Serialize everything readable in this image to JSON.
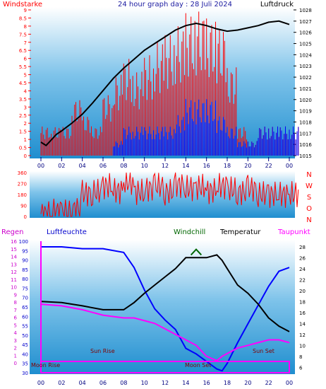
{
  "chart_data": [
    {
      "type": "line",
      "title": "24 hour graph day : 28 Juli 2024",
      "left_label": "Windstarke",
      "right_label": "Luftdruck",
      "x_ticks": [
        "00",
        "02",
        "04",
        "06",
        "08",
        "10",
        "12",
        "14",
        "16",
        "18",
        "20",
        "22",
        "00"
      ],
      "left_ticks": [
        "0",
        "0.5",
        "1",
        "1.5",
        "2",
        "2.5",
        "3",
        "3.5",
        "4",
        "4.5",
        "5",
        "5.5",
        "6",
        "6.5",
        "7",
        "7.5",
        "8",
        "8.5",
        "9"
      ],
      "right_ticks": [
        "1015",
        "1016",
        "1017",
        "1018",
        "1019",
        "1020",
        "1021",
        "1022",
        "1023",
        "1024",
        "1025",
        "1026",
        "1027",
        "1028"
      ],
      "ylim_left": [
        0,
        9
      ],
      "ylim_right": [
        1015,
        1028
      ],
      "series": [
        {
          "role": "pressure",
          "color": "#000000",
          "x": [
            0,
            0.5,
            1,
            1.5,
            2,
            3,
            4,
            5,
            6,
            7,
            8,
            9,
            10,
            11,
            12,
            13,
            14,
            15,
            16,
            17,
            18,
            19,
            20,
            21,
            22,
            23,
            24
          ],
          "y": [
            1016.2,
            1015.9,
            1016.4,
            1016.9,
            1017.2,
            1017.9,
            1018.7,
            1019.7,
            1020.8,
            1021.9,
            1022.8,
            1023.6,
            1024.4,
            1025.0,
            1025.6,
            1026.2,
            1026.6,
            1026.8,
            1026.6,
            1026.3,
            1026.1,
            1026.2,
            1026.4,
            1026.6,
            1026.9,
            1027.0,
            1026.7
          ]
        },
        {
          "role": "wind-gust",
          "color": "#ff0000",
          "x": [
            0,
            1,
            2,
            3,
            4,
            5,
            6,
            7,
            8,
            9,
            10,
            11,
            12,
            13,
            14,
            15,
            16,
            17,
            18,
            19,
            20,
            21,
            22,
            23,
            24
          ],
          "y": [
            1.8,
            1.8,
            1.8,
            3.5,
            2.5,
            1.8,
            3.8,
            5.0,
            6.0,
            5.2,
            6.2,
            7.0,
            7.5,
            8.0,
            8.8,
            9.0,
            8.5,
            8.0,
            5.5,
            1.8,
            0.9,
            1.8,
            1.8,
            1.8,
            1.8
          ]
        },
        {
          "role": "wind-mean",
          "color": "#0000ff",
          "x": [
            7,
            8,
            9,
            10,
            11,
            12,
            13,
            14,
            15,
            16,
            17,
            18,
            19,
            20,
            21,
            22,
            23,
            24
          ],
          "y": [
            0.9,
            1.8,
            1.8,
            1.8,
            1.8,
            1.8,
            2.5,
            3.5,
            3.5,
            3.5,
            2.5,
            1.8,
            0.9,
            0.9,
            1.8,
            1.8,
            1.8,
            1.8
          ]
        }
      ]
    },
    {
      "type": "line",
      "y_ticks": [
        "0",
        "90",
        "180",
        "270",
        "360"
      ],
      "ylim": [
        0,
        360
      ],
      "compass": [
        "N",
        "W",
        "S",
        "O",
        "N"
      ],
      "x_ticks": [
        "00",
        "02",
        "04",
        "06",
        "08",
        "10",
        "12",
        "14",
        "16",
        "18",
        "20",
        "22",
        "00"
      ],
      "series": [
        {
          "role": "wind-direction",
          "color": "#ff0000",
          "x": [
            0,
            1,
            2,
            3,
            4,
            5,
            6,
            7,
            8,
            9,
            10,
            11,
            12,
            13,
            14,
            15,
            16,
            17,
            18,
            19,
            20,
            21,
            22,
            23,
            24
          ],
          "y": [
            20,
            40,
            30,
            60,
            190,
            200,
            250,
            210,
            280,
            200,
            230,
            250,
            200,
            260,
            230,
            240,
            210,
            250,
            220,
            200,
            230,
            180,
            180,
            180,
            180
          ]
        }
      ]
    },
    {
      "type": "line",
      "headers": {
        "regen": "Regen",
        "humidity": "Luftfeuchte",
        "windchill": "Windchill",
        "temperature": "Temperatur",
        "dewpoint": "Taupunkt"
      },
      "left_ticks_rain": [
        "0",
        "1",
        "2",
        "3",
        "4",
        "5",
        "6",
        "7",
        "8",
        "9",
        "10",
        "11",
        "12",
        "13",
        "14",
        "15",
        "16"
      ],
      "left_ticks_humidity": [
        "30",
        "35",
        "40",
        "45",
        "50",
        "55",
        "60",
        "65",
        "70",
        "75",
        "80",
        "85",
        "90",
        "95",
        "100"
      ],
      "right_ticks": [
        "6",
        "8",
        "10",
        "12",
        "14",
        "16",
        "18",
        "20",
        "22",
        "24",
        "26",
        "28"
      ],
      "x_ticks": [
        "00",
        "02",
        "04",
        "06",
        "08",
        "10",
        "12",
        "14",
        "16",
        "18",
        "20",
        "22",
        "00"
      ],
      "ylim_humidity": [
        30,
        100
      ],
      "ylim_temp": [
        5,
        29
      ],
      "annotations": {
        "moonrise": "Moon Rise",
        "sunrise": "Sun Rise",
        "moonset": "Moon Set",
        "sunset": "Sun Set"
      },
      "series": [
        {
          "role": "humidity",
          "color": "#0000ff",
          "x": [
            0,
            2,
            4,
            6,
            8,
            9,
            10,
            11,
            12,
            13,
            14,
            15,
            16,
            17,
            17.5,
            18,
            19,
            20,
            21,
            22,
            23,
            24
          ],
          "y": [
            97,
            97,
            96,
            96,
            94,
            86,
            74,
            64,
            58,
            53,
            43,
            40,
            36,
            32,
            31,
            35,
            46,
            56,
            66,
            76,
            84,
            86
          ]
        },
        {
          "role": "temperature",
          "color": "#000000",
          "x": [
            0,
            2,
            4,
            6,
            8,
            9,
            10,
            11,
            12,
            13,
            14,
            15,
            16,
            17,
            17.5,
            18,
            19,
            20,
            21,
            22,
            23,
            24
          ],
          "y": [
            18,
            17.8,
            17.2,
            16.5,
            16.5,
            17.8,
            19.5,
            21,
            22.5,
            24,
            26,
            26,
            26,
            26.5,
            25.5,
            24,
            21,
            19.5,
            17.5,
            15,
            13.5,
            12.5
          ]
        },
        {
          "role": "windchill",
          "color": "#006600",
          "x": [
            14.5,
            15,
            15.5
          ],
          "y": [
            26.5,
            27.5,
            26.5
          ]
        },
        {
          "role": "dewpoint",
          "color": "#ff00ff",
          "x": [
            0,
            2,
            4,
            6,
            8,
            9,
            10,
            11,
            12,
            13,
            14,
            15,
            16,
            17,
            17.5,
            18,
            19,
            20,
            21,
            22,
            23,
            24
          ],
          "y": [
            17.5,
            17.2,
            16.5,
            15.5,
            15,
            15,
            14.5,
            14,
            13,
            12,
            11,
            10,
            8,
            7.2,
            8,
            8.5,
            9.5,
            10,
            10.5,
            11,
            11,
            10.5
          ]
        },
        {
          "role": "rain",
          "color": "#ff00ff",
          "x": [
            0,
            24
          ],
          "y": [
            0,
            0
          ]
        }
      ]
    }
  ]
}
